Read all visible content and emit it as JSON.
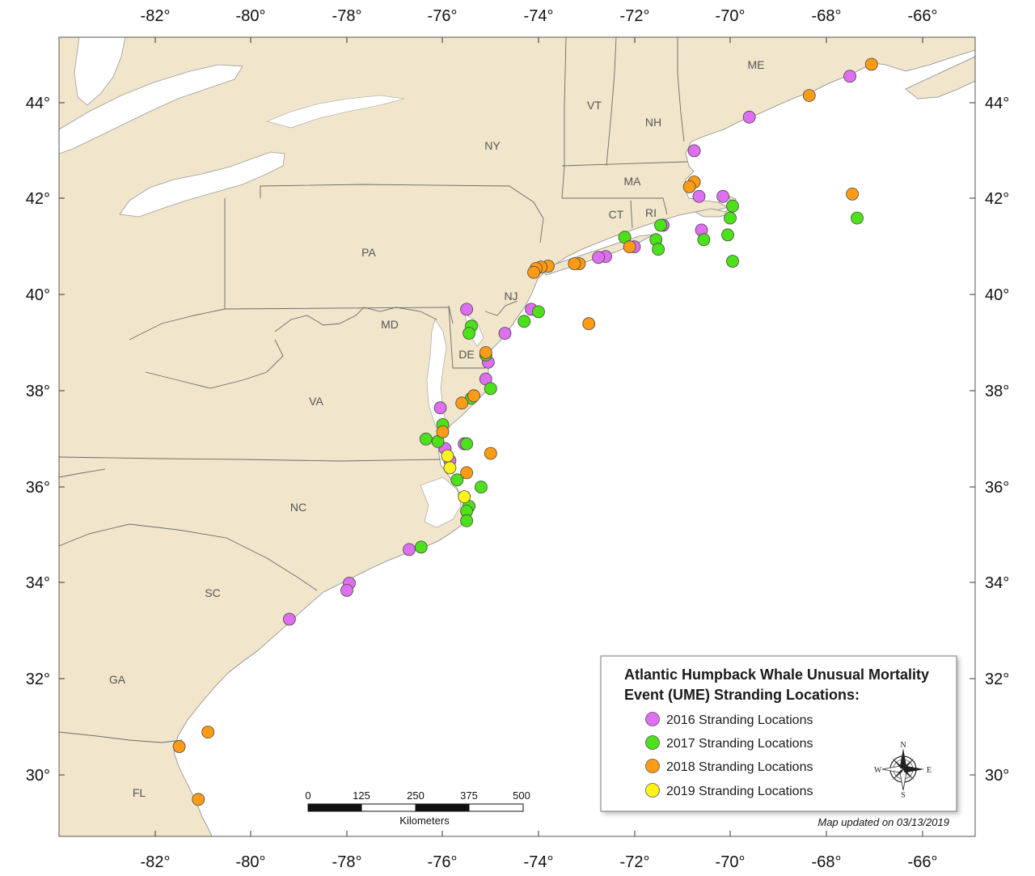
{
  "map": {
    "lon_ticks": [
      "-82°",
      "-80°",
      "-78°",
      "-76°",
      "-74°",
      "-72°",
      "-70°",
      "-68°",
      "-66°"
    ],
    "lat_ticks": [
      "44°",
      "42°",
      "40°",
      "38°",
      "36°",
      "34°",
      "32°",
      "30°"
    ],
    "states": [
      "ME",
      "VT",
      "NH",
      "NY",
      "MA",
      "CT",
      "RI",
      "PA",
      "NJ",
      "MD",
      "DE",
      "VA",
      "NC",
      "SC",
      "GA",
      "FL"
    ],
    "colors": {
      "land": "#f1e6cc",
      "water": "#ffffff",
      "border": "#6b6b6b",
      "2016": "#dd6ff0",
      "2017": "#4ce11a",
      "2018": "#ff9b14",
      "2019": "#fff21a"
    },
    "strandings": {
      "2016": [
        [
          -67.5,
          44.55
        ],
        [
          -69.6,
          43.7
        ],
        [
          -70.75,
          43.0
        ],
        [
          -70.65,
          42.05
        ],
        [
          -70.15,
          42.05
        ],
        [
          -71.4,
          41.45
        ],
        [
          -70.6,
          41.35
        ],
        [
          -72.0,
          41.0
        ],
        [
          -72.6,
          40.8
        ],
        [
          -72.75,
          40.78
        ],
        [
          -74.15,
          39.7
        ],
        [
          -74.7,
          39.2
        ],
        [
          -75.5,
          39.7
        ],
        [
          -75.05,
          38.6
        ],
        [
          -75.1,
          38.25
        ],
        [
          -76.05,
          37.65
        ],
        [
          -75.95,
          36.8
        ],
        [
          -75.85,
          36.55
        ],
        [
          -75.55,
          36.9
        ],
        [
          -76.7,
          34.7
        ],
        [
          -77.95,
          34.0
        ],
        [
          -78.0,
          33.85
        ],
        [
          -79.2,
          33.25
        ]
      ],
      "2017": [
        [
          -69.95,
          41.85
        ],
        [
          -70.0,
          41.6
        ],
        [
          -70.05,
          41.25
        ],
        [
          -70.55,
          41.15
        ],
        [
          -69.95,
          40.7
        ],
        [
          -71.45,
          41.45
        ],
        [
          -71.55,
          41.15
        ],
        [
          -71.5,
          40.95
        ],
        [
          -72.2,
          41.2
        ],
        [
          -67.35,
          41.6
        ],
        [
          -75.4,
          39.35
        ],
        [
          -75.45,
          39.2
        ],
        [
          -74.3,
          39.45
        ],
        [
          -74.0,
          39.65
        ],
        [
          -75.1,
          38.75
        ],
        [
          -75.0,
          38.05
        ],
        [
          -75.4,
          37.85
        ],
        [
          -76.0,
          37.3
        ],
        [
          -76.35,
          37.0
        ],
        [
          -76.1,
          36.95
        ],
        [
          -75.5,
          36.9
        ],
        [
          -75.7,
          36.15
        ],
        [
          -75.2,
          36.0
        ],
        [
          -75.45,
          35.6
        ],
        [
          -75.5,
          35.5
        ],
        [
          -75.5,
          35.3
        ],
        [
          -76.45,
          34.75
        ]
      ],
      "2018": [
        [
          -67.05,
          44.8
        ],
        [
          -68.35,
          44.15
        ],
        [
          -70.75,
          42.35
        ],
        [
          -70.85,
          42.25
        ],
        [
          -67.45,
          42.1
        ],
        [
          -72.1,
          41.0
        ],
        [
          -73.15,
          40.65
        ],
        [
          -73.25,
          40.65
        ],
        [
          -73.8,
          40.6
        ],
        [
          -73.95,
          40.58
        ],
        [
          -74.05,
          40.55
        ],
        [
          -74.1,
          40.47
        ],
        [
          -72.95,
          39.4
        ],
        [
          -75.1,
          38.8
        ],
        [
          -75.35,
          37.9
        ],
        [
          -75.6,
          37.75
        ],
        [
          -76.0,
          37.15
        ],
        [
          -75.0,
          36.7
        ],
        [
          -75.5,
          36.3
        ],
        [
          -81.5,
          30.6
        ],
        [
          -80.9,
          30.9
        ],
        [
          -81.1,
          29.5
        ]
      ],
      "2019": [
        [
          -75.9,
          36.65
        ],
        [
          -75.85,
          36.4
        ],
        [
          -75.55,
          35.8
        ]
      ]
    }
  },
  "scale_bar": {
    "ticks": [
      "0",
      "125",
      "250",
      "375",
      "500"
    ],
    "unit": "Kilometers"
  },
  "legend": {
    "title_line1": "Atlantic Humpback Whale Unusual Mortality",
    "title_line2": "Event (UME) Stranding Locations:",
    "items": [
      {
        "label": "2016 Stranding Locations",
        "color": "#dd6ff0"
      },
      {
        "label": "2017 Stranding Locations",
        "color": "#4ce11a"
      },
      {
        "label": "2018 Stranding Locations",
        "color": "#ff9b14"
      },
      {
        "label": "2019 Stranding Locations",
        "color": "#fff21a"
      }
    ]
  },
  "compass": {
    "n": "N",
    "s": "S",
    "e": "E",
    "w": "W"
  },
  "updated_text": "Map updated on 03/13/2019"
}
